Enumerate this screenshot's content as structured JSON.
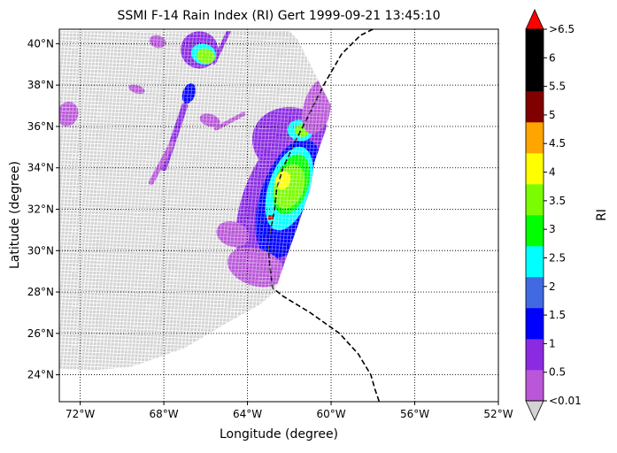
{
  "chart_data": {
    "type": "heatmap",
    "title": "SSMI F-14 Rain Index (RI) Gert 1999-09-21 13:45:10",
    "xlabel": "Longitude (degree)",
    "ylabel": "Latitude (degree)",
    "xlim": [
      -73.0,
      -52.0
    ],
    "ylim": [
      22.7,
      40.7
    ],
    "x_ticks": [
      {
        "value": -72,
        "label": "72°W"
      },
      {
        "value": -68,
        "label": "68°W"
      },
      {
        "value": -64,
        "label": "64°W"
      },
      {
        "value": -60,
        "label": "60°W"
      },
      {
        "value": -56,
        "label": "56°W"
      },
      {
        "value": -52,
        "label": "52°W"
      }
    ],
    "y_ticks": [
      {
        "value": 24,
        "label": "24°N"
      },
      {
        "value": 26,
        "label": "26°N"
      },
      {
        "value": 28,
        "label": "28°N"
      },
      {
        "value": 30,
        "label": "30°N"
      },
      {
        "value": 32,
        "label": "32°N"
      },
      {
        "value": 34,
        "label": "34°N"
      },
      {
        "value": 36,
        "label": "36°N"
      },
      {
        "value": 38,
        "label": "38°N"
      },
      {
        "value": 40,
        "label": "40°N"
      }
    ],
    "grid": true,
    "grid_style": "dotted",
    "no_data_color": "#d3d3d3",
    "colorbar": {
      "label": "RI",
      "labels": [
        "<0.01",
        "0.5",
        "1",
        "1.5",
        "2",
        "2.5",
        "3",
        "3.5",
        "4",
        "4.5",
        "5",
        "5.5",
        "6",
        ">6.5"
      ],
      "under_color": "#d3d3d3",
      "over_color": "#ff0000",
      "colors": [
        "#b957d8",
        "#8a2be2",
        "#0000ff",
        "#4169e1",
        "#00ffff",
        "#00ff00",
        "#7cfc00",
        "#ffff00",
        "#ffa500",
        "#800000",
        "#000000",
        "#000000"
      ]
    },
    "swath_edge": [
      [
        -73,
        40.6
      ],
      [
        -62.0,
        40.6
      ],
      [
        -61.6,
        40.2
      ],
      [
        -61.0,
        39.0
      ],
      [
        -60.6,
        38.2
      ],
      [
        -60.0,
        37.0
      ],
      [
        -60.2,
        36.0
      ],
      [
        -60.8,
        34.3
      ],
      [
        -61.0,
        33.0
      ],
      [
        -61.6,
        31.2
      ],
      [
        -62.2,
        29.5
      ],
      [
        -62.7,
        28.0
      ],
      [
        -63.4,
        27.4
      ],
      [
        -65.0,
        26.5
      ],
      [
        -67.0,
        25.3
      ],
      [
        -69.5,
        24.4
      ],
      [
        -71.5,
        24.2
      ],
      [
        -73,
        24.3
      ]
    ],
    "track": [
      [
        -58.0,
        40.7
      ],
      [
        -58.6,
        40.4
      ],
      [
        -59.5,
        39.5
      ],
      [
        -60.3,
        38.1
      ],
      [
        -60.9,
        36.9
      ],
      [
        -61.7,
        35.3
      ],
      [
        -62.3,
        34.0
      ],
      [
        -62.6,
        33.0
      ],
      [
        -62.7,
        32.0
      ],
      [
        -62.9,
        31.0
      ],
      [
        -63.0,
        30.0
      ],
      [
        -62.9,
        29.0
      ],
      [
        -62.8,
        28.2
      ],
      [
        -62.3,
        27.8
      ],
      [
        -61.0,
        27.0
      ],
      [
        -59.6,
        26.0
      ],
      [
        -58.7,
        25.0
      ],
      [
        -58.1,
        24.0
      ],
      [
        -57.9,
        23.3
      ],
      [
        -57.7,
        22.7
      ]
    ],
    "rain_regions": [
      {
        "level": 1,
        "center": [
          -61.8,
          35.2
        ],
        "radius": [
          2.0,
          1.7
        ]
      },
      {
        "level": 1,
        "center": [
          -62.5,
          32.2
        ],
        "radius": [
          1.8,
          3.8
        ]
      },
      {
        "level": 2,
        "center": [
          -62.0,
          32.5
        ],
        "radius": [
          1.4,
          3.0
        ]
      },
      {
        "level": 4,
        "center": [
          -62.0,
          33.0
        ],
        "radius": [
          1.0,
          2.1
        ]
      },
      {
        "level": 5,
        "center": [
          -61.9,
          33.2
        ],
        "radius": [
          0.8,
          1.5
        ]
      },
      {
        "level": 6,
        "center": [
          -62.0,
          33.1
        ],
        "radius": [
          0.7,
          1.1
        ]
      },
      {
        "level": 7,
        "center": [
          -62.3,
          33.4
        ],
        "radius": [
          0.35,
          0.45
        ]
      },
      {
        "level": 4,
        "center": [
          -61.5,
          35.8
        ],
        "radius": [
          0.6,
          0.5
        ]
      },
      {
        "level": 6,
        "center": [
          -61.4,
          35.8
        ],
        "radius": [
          0.35,
          0.3
        ]
      },
      {
        "level": 0,
        "center": [
          -60.6,
          37.0
        ],
        "radius": [
          0.7,
          1.4
        ]
      },
      {
        "level": 0,
        "center": [
          -63.6,
          29.2
        ],
        "radius": [
          1.4,
          0.9
        ]
      },
      {
        "level": 0,
        "center": [
          -64.7,
          30.8
        ],
        "radius": [
          0.8,
          0.6
        ]
      },
      {
        "level": 1,
        "center": [
          -66.3,
          39.7
        ],
        "radius": [
          0.9,
          0.9
        ]
      },
      {
        "level": 4,
        "center": [
          -66.1,
          39.5
        ],
        "radius": [
          0.6,
          0.5
        ]
      },
      {
        "level": 6,
        "center": [
          -66.0,
          39.4
        ],
        "radius": [
          0.45,
          0.35
        ]
      },
      {
        "level": 2,
        "center": [
          -66.8,
          37.6
        ],
        "radius": [
          0.3,
          0.5
        ]
      },
      {
        "level": 0,
        "center": [
          -68.3,
          40.1
        ],
        "radius": [
          0.4,
          0.3
        ]
      },
      {
        "level": 0,
        "center": [
          -69.3,
          37.8
        ],
        "radius": [
          0.4,
          0.2
        ]
      },
      {
        "level": 0,
        "center": [
          -72.6,
          36.6
        ],
        "radius": [
          0.5,
          0.6
        ]
      },
      {
        "level": 0,
        "center": [
          -65.8,
          36.3
        ],
        "radius": [
          0.5,
          0.3
        ]
      }
    ],
    "rain_streaks": [
      {
        "level": 1,
        "from": [
          -67.0,
          37.0
        ],
        "to": [
          -68.0,
          34.0
        ],
        "width": 0.3
      },
      {
        "level": 0,
        "from": [
          -67.6,
          35.2
        ],
        "to": [
          -68.6,
          33.3
        ],
        "width": 0.25
      },
      {
        "level": 1,
        "from": [
          -64.9,
          40.6
        ],
        "to": [
          -65.6,
          39.1
        ],
        "width": 0.2
      },
      {
        "level": 0,
        "from": [
          -64.2,
          36.6
        ],
        "to": [
          -65.5,
          35.9
        ],
        "width": 0.2
      }
    ],
    "red_points": [
      [
        -62.9,
        31.6
      ]
    ]
  }
}
